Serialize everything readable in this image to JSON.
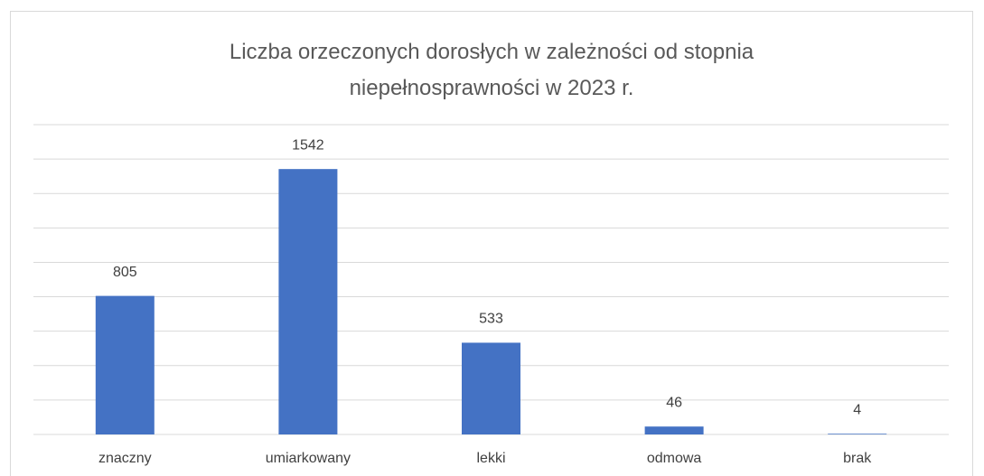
{
  "chart_data": {
    "type": "bar",
    "title": "Liczba orzeczonych dorosłych w zależności od stopnia niepełnosprawności w 2023 r.",
    "categories": [
      "znaczny",
      "umiarkowany",
      "lekki",
      "odmowa",
      "brak"
    ],
    "values": [
      805,
      1542,
      533,
      46,
      4
    ],
    "color": "#4472c4",
    "ylim": [
      0,
      1800
    ],
    "yticks": [
      0,
      200,
      400,
      600,
      800,
      1000,
      1200,
      1400,
      1600,
      1800
    ],
    "grid": true
  }
}
